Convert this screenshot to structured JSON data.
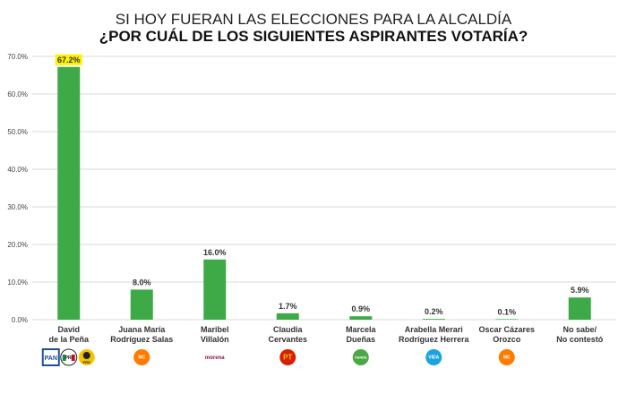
{
  "colors": {
    "bar": "#3daa47",
    "highlight": "#fff200",
    "grid": "#d9d9d9",
    "pan": "#1f4e9c",
    "pri": "#c8102e",
    "prd": "#f2c500",
    "mc": "#ff7a00",
    "morena": "#8b1538",
    "pt": "#d81e05",
    "pvem": "#49a942",
    "vida": "#1aa3e0",
    "other": "#35b6e8"
  },
  "chart_data": {
    "type": "bar",
    "title": "SI HOY FUERAN LAS ELECCIONES PARA LA ALCALDÍA",
    "subtitle": "¿POR CUÁL DE LOS SIGUIENTES ASPIRANTES VOTARÍA?",
    "categories": [
      [
        "David",
        "de la Peña"
      ],
      [
        "Juana María",
        "Rodríguez Salas"
      ],
      [
        "Maribel",
        "Villalón"
      ],
      [
        "Claudia",
        "Cervantes"
      ],
      [
        "Marcela",
        "Dueñas"
      ],
      [
        "Arabella Merari",
        "Rodríguez Herrera"
      ],
      [
        "Oscar Cázares",
        "Orozco"
      ],
      [
        "No sabe/",
        "No contestó"
      ]
    ],
    "values": [
      67.2,
      8.0,
      16.0,
      1.7,
      0.9,
      0.2,
      0.1,
      5.9
    ],
    "value_labels": [
      "67.2%",
      "8.0%",
      "16.0%",
      "1.7%",
      "0.9%",
      "0.2%",
      "0.1%",
      "5.9%"
    ],
    "highlight_index": 0,
    "yticks": [
      0,
      10,
      20,
      30,
      40,
      50,
      60,
      70
    ],
    "ytick_labels": [
      "0.0%",
      "10.0%",
      "20.0%",
      "30.0%",
      "40.0%",
      "50.0%",
      "60.0%",
      "70.0%"
    ],
    "ylim": [
      0,
      70
    ],
    "grid": true,
    "party_logos": [
      [
        "PAN",
        "PRI",
        "PRD"
      ],
      [
        "MC"
      ],
      [
        "morena"
      ],
      [
        "PT"
      ],
      [
        "VERDE"
      ],
      [
        "VIDA"
      ],
      [
        "MC"
      ],
      []
    ]
  }
}
